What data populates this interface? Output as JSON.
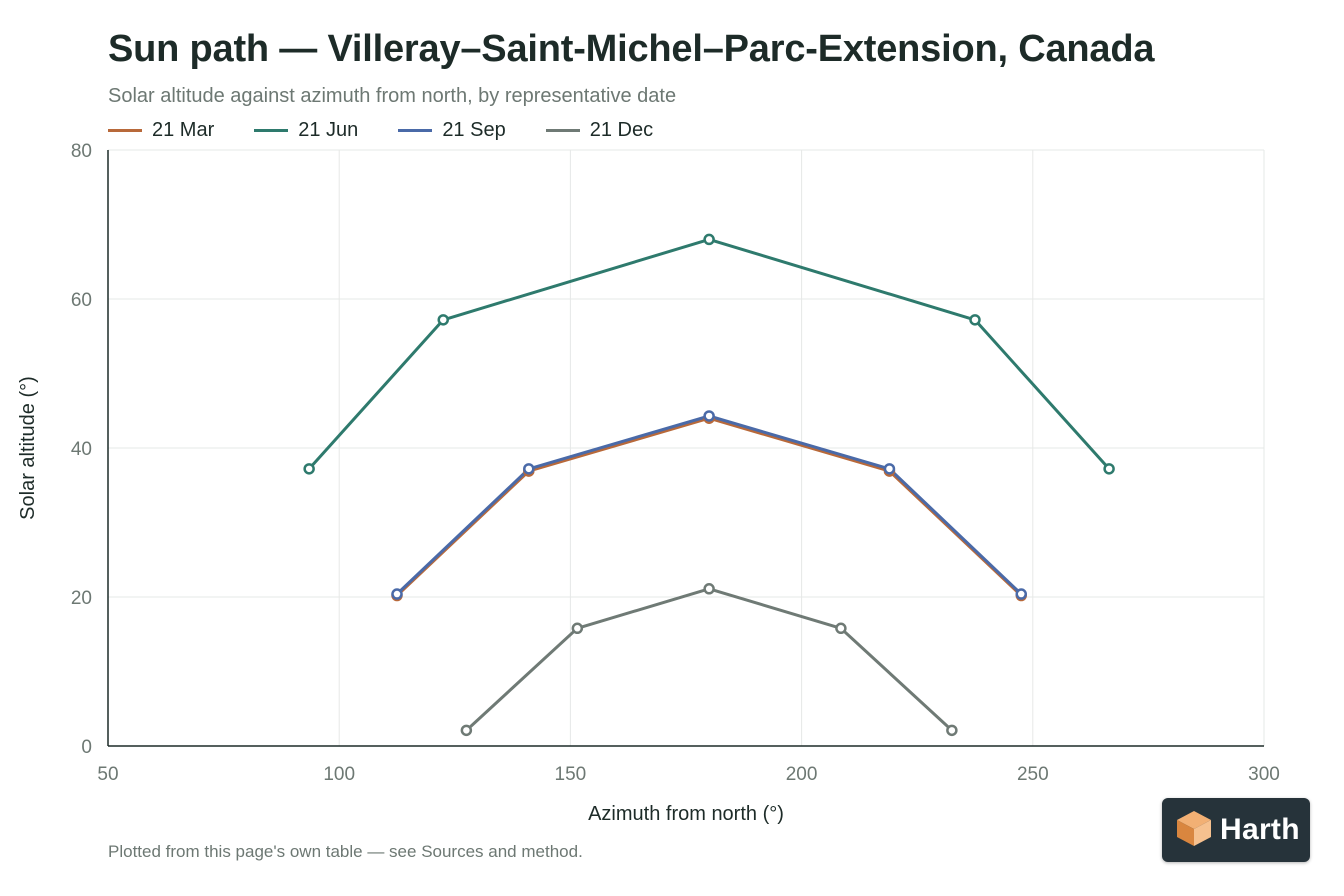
{
  "header": {
    "title": "Sun path — Villeray–Saint-Michel–Parc-Extension, Canada",
    "subtitle": "Solar altitude against azimuth from north, by representative date"
  },
  "footnote": "Plotted from this page's own table — see Sources and method.",
  "logo": {
    "text": "Harth",
    "icon": "cube-logo-icon"
  },
  "colors": {
    "mar": "#b8693a",
    "jun": "#2e7a6d",
    "sep": "#4a6aa8",
    "dec": "#6f7a75",
    "grid": "#e6e8e7",
    "axis": "#1d2b28"
  },
  "chart_data": {
    "type": "line",
    "title": "Sun path — Villeray–Saint-Michel–Parc-Extension, Canada",
    "subtitle": "Solar altitude against azimuth from north, by representative date",
    "xlabel": "Azimuth from north (°)",
    "ylabel": "Solar altitude (°)",
    "xlim": [
      50,
      300
    ],
    "ylim": [
      0,
      80
    ],
    "xticks": [
      50,
      100,
      150,
      200,
      250,
      300
    ],
    "yticks": [
      0,
      20,
      40,
      60,
      80
    ],
    "grid": true,
    "legend_position": "top-left",
    "series": [
      {
        "name": "21 Mar",
        "color": "#b8693a",
        "points": [
          [
            112.5,
            20.2
          ],
          [
            141,
            36.9
          ],
          [
            180,
            44
          ],
          [
            219,
            36.9
          ],
          [
            247.5,
            20.2
          ]
        ]
      },
      {
        "name": "21 Jun",
        "color": "#2e7a6d",
        "points": [
          [
            93.5,
            37.2
          ],
          [
            122.5,
            57.2
          ],
          [
            180,
            68
          ],
          [
            237.5,
            57.2
          ],
          [
            266.5,
            37.2
          ]
        ]
      },
      {
        "name": "21 Sep",
        "color": "#4a6aa8",
        "points": [
          [
            112.5,
            20.4
          ],
          [
            141,
            37.2
          ],
          [
            180,
            44.3
          ],
          [
            219,
            37.2
          ],
          [
            247.5,
            20.4
          ]
        ]
      },
      {
        "name": "21 Dec",
        "color": "#6f7a75",
        "points": [
          [
            127.5,
            2.1
          ],
          [
            151.5,
            15.8
          ],
          [
            180,
            21.1
          ],
          [
            208.5,
            15.8
          ],
          [
            232.5,
            2.1
          ]
        ]
      }
    ]
  }
}
